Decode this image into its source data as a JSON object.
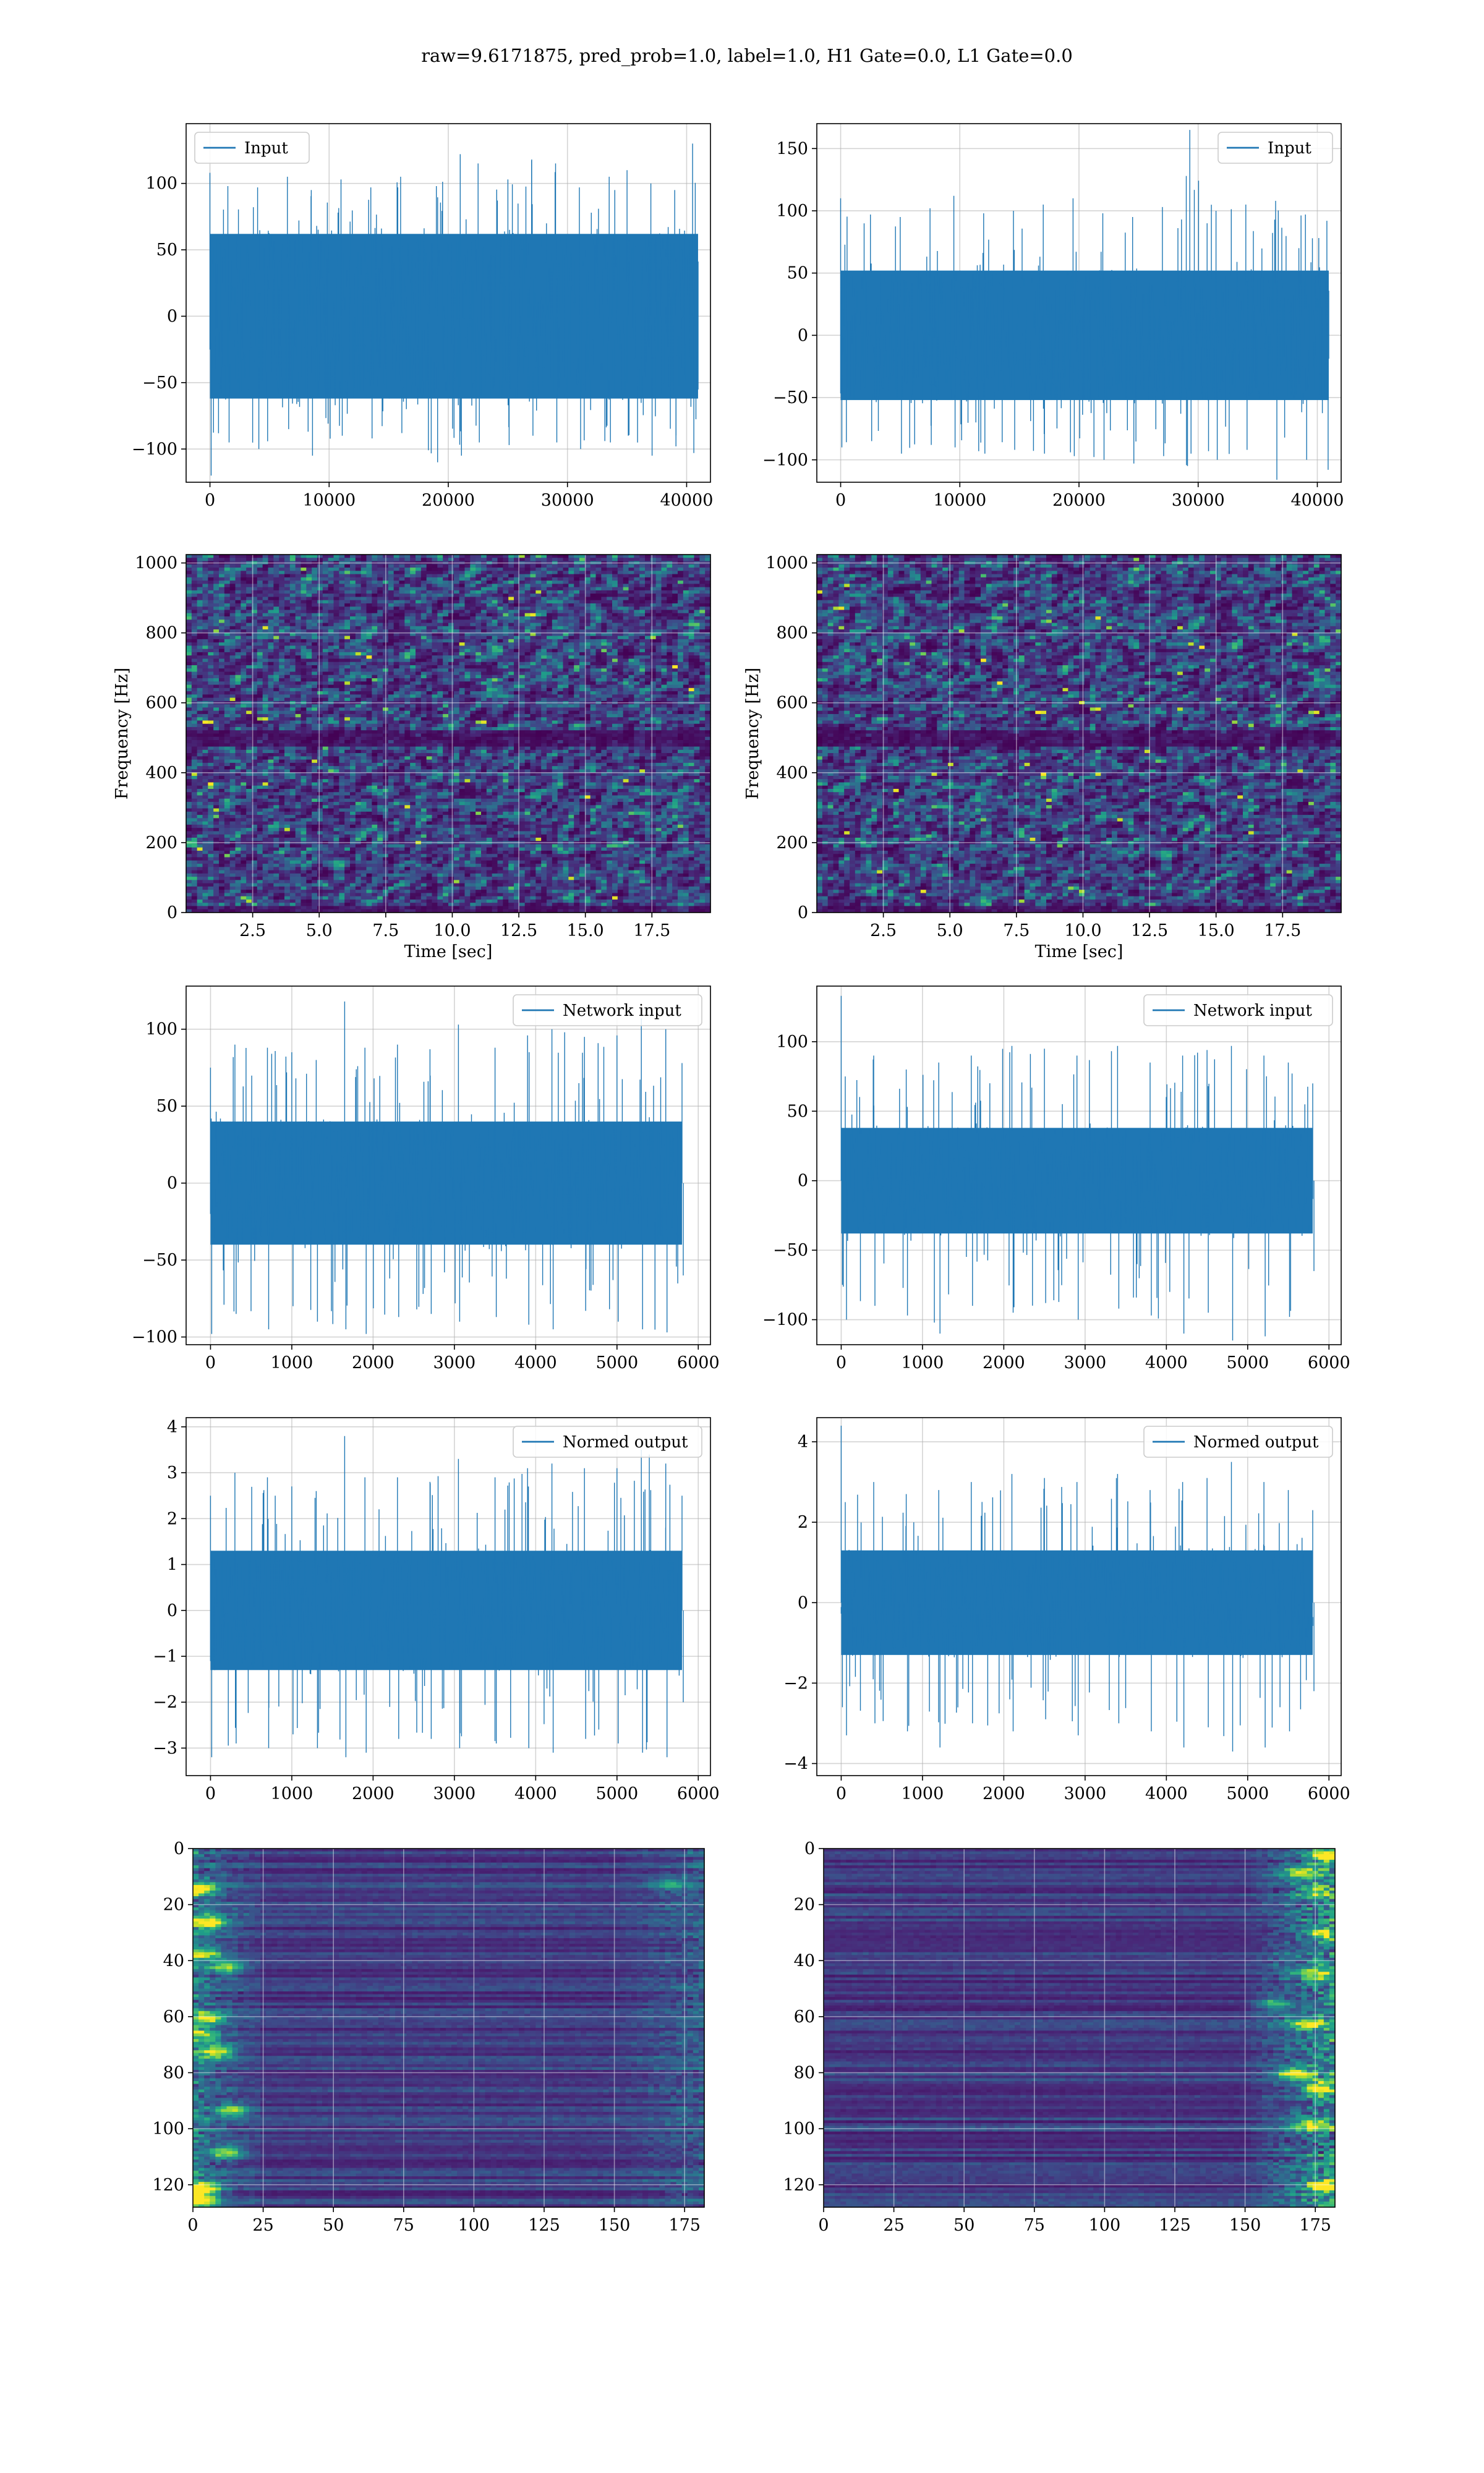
{
  "figure": {
    "title": "raw=9.6171875, pred_prob=1.0, label=1.0, H1 Gate=0.0, L1 Gate=0.0"
  },
  "colors": {
    "line": "#1f77b4",
    "grid": "#b0b0b0",
    "viridis": [
      "#440154",
      "#482878",
      "#3e4a89",
      "#31688e",
      "#26828e",
      "#1f9e89",
      "#35b779",
      "#6ece58",
      "#b5de2b",
      "#fde725"
    ]
  },
  "chart_data": [
    {
      "id": "input-h1",
      "type": "line",
      "title": "",
      "xlabel": "",
      "ylabel": "",
      "xlim": [
        -2000,
        42000
      ],
      "ylim": [
        -125,
        145
      ],
      "xticks": [
        0,
        10000,
        20000,
        30000,
        40000
      ],
      "yticks": [
        -100,
        -50,
        0,
        50,
        100
      ],
      "legend": "top-left",
      "grid": true,
      "series": [
        {
          "name": "Input",
          "x_range": [
            0,
            40960
          ],
          "band": [
            -62,
            62
          ],
          "samples": [
            [
              0,
              108,
              -120
            ],
            [
              1500,
              98,
              -95
            ],
            [
              4000,
              97,
              -100
            ],
            [
              6500,
              105,
              -85
            ],
            [
              8500,
              95,
              -105
            ],
            [
              11000,
              103,
              -90
            ],
            [
              13500,
              97,
              -92
            ],
            [
              16000,
              105,
              -88
            ],
            [
              19000,
              98,
              -110
            ],
            [
              21000,
              122,
              -105
            ],
            [
              22500,
              115,
              -95
            ],
            [
              25000,
              103,
              -97
            ],
            [
              27000,
              118,
              -90
            ],
            [
              29000,
              115,
              -95
            ],
            [
              31000,
              97,
              -100
            ],
            [
              33500,
              105,
              -95
            ],
            [
              35000,
              110,
              -90
            ],
            [
              37000,
              100,
              -105
            ],
            [
              39000,
              95,
              -98
            ],
            [
              40500,
              130,
              -103
            ]
          ]
        }
      ]
    },
    {
      "id": "input-l1",
      "type": "line",
      "title": "",
      "xlabel": "",
      "ylabel": "",
      "xlim": [
        -2000,
        42000
      ],
      "ylim": [
        -118,
        170
      ],
      "xticks": [
        0,
        10000,
        20000,
        30000,
        40000
      ],
      "yticks": [
        -100,
        -50,
        0,
        50,
        100,
        150
      ],
      "legend": "top-right",
      "grid": true,
      "series": [
        {
          "name": "Input",
          "x_range": [
            0,
            40960
          ],
          "band": [
            -52,
            52
          ],
          "samples": [
            [
              0,
              110,
              -90
            ],
            [
              2500,
              97,
              -85
            ],
            [
              5000,
              95,
              -95
            ],
            [
              7500,
              102,
              -88
            ],
            [
              9500,
              112,
              -90
            ],
            [
              12000,
              98,
              -95
            ],
            [
              14500,
              100,
              -92
            ],
            [
              17000,
              105,
              -95
            ],
            [
              19500,
              110,
              -97
            ],
            [
              22000,
              98,
              -100
            ],
            [
              24500,
              95,
              -103
            ],
            [
              27000,
              103,
              -97
            ],
            [
              29000,
              128,
              -105
            ],
            [
              29300,
              165,
              -95
            ],
            [
              31500,
              100,
              -100
            ],
            [
              34000,
              105,
              -92
            ],
            [
              36500,
              108,
              -116
            ],
            [
              39000,
              97,
              -100
            ],
            [
              40800,
              92,
              -108
            ]
          ]
        }
      ]
    },
    {
      "id": "spec-h1",
      "type": "heatmap",
      "title": "",
      "xlabel": "Time [sec]",
      "ylabel": "Frequency [Hz]",
      "xlim": [
        0,
        19.7
      ],
      "ylim": [
        0,
        1024
      ],
      "xticks": [
        2.5,
        5.0,
        7.5,
        10.0,
        12.5,
        15.0,
        17.5
      ],
      "yticks": [
        0,
        200,
        400,
        600,
        800,
        1000
      ],
      "tick_labels_x": [
        "2.5",
        "5.0",
        "7.5",
        "10.0",
        "12.5",
        "15.0",
        "17.5"
      ],
      "grid": true,
      "colormap": "viridis",
      "notes_band_hz": [
        475,
        525
      ]
    },
    {
      "id": "spec-l1",
      "type": "heatmap",
      "title": "",
      "xlabel": "Time [sec]",
      "ylabel": "Frequency [Hz]",
      "xlim": [
        0,
        19.7
      ],
      "ylim": [
        0,
        1024
      ],
      "xticks": [
        2.5,
        5.0,
        7.5,
        10.0,
        12.5,
        15.0,
        17.5
      ],
      "yticks": [
        0,
        200,
        400,
        600,
        800,
        1000
      ],
      "tick_labels_x": [
        "2.5",
        "5.0",
        "7.5",
        "10.0",
        "12.5",
        "15.0",
        "17.5"
      ],
      "grid": true,
      "colormap": "viridis",
      "notes_band_hz": [
        475,
        525
      ]
    },
    {
      "id": "net-h1",
      "type": "line",
      "title": "",
      "xlabel": "",
      "ylabel": "",
      "xlim": [
        -300,
        6150
      ],
      "ylim": [
        -105,
        128
      ],
      "xticks": [
        0,
        1000,
        2000,
        3000,
        4000,
        5000,
        6000
      ],
      "yticks": [
        -100,
        -50,
        0,
        50,
        100
      ],
      "legend": "top-right",
      "grid": true,
      "series": [
        {
          "name": "Network input",
          "x_range": [
            0,
            5800
          ],
          "band": [
            -40,
            40
          ],
          "samples": [
            [
              0,
              75,
              -98
            ],
            [
              300,
              90,
              -85
            ],
            [
              700,
              88,
              -95
            ],
            [
              1000,
              85,
              -80
            ],
            [
              1300,
              80,
              -90
            ],
            [
              1650,
              118,
              -95
            ],
            [
              1900,
              88,
              -98
            ],
            [
              2300,
              90,
              -87
            ],
            [
              2700,
              87,
              -85
            ],
            [
              3050,
              103,
              -90
            ],
            [
              3500,
              88,
              -87
            ],
            [
              3900,
              96,
              -92
            ],
            [
              4200,
              100,
              -95
            ],
            [
              4600,
              95,
              -83
            ],
            [
              5000,
              96,
              -90
            ],
            [
              5300,
              107,
              -95
            ],
            [
              5600,
              100,
              -97
            ],
            [
              5800,
              78,
              -60
            ]
          ]
        }
      ]
    },
    {
      "id": "net-l1",
      "type": "line",
      "title": "",
      "xlabel": "",
      "ylabel": "",
      "xlim": [
        -300,
        6150
      ],
      "ylim": [
        -118,
        140
      ],
      "xticks": [
        0,
        1000,
        2000,
        3000,
        4000,
        5000,
        6000
      ],
      "yticks": [
        -100,
        -50,
        0,
        50,
        100
      ],
      "legend": "top-right",
      "grid": true,
      "series": [
        {
          "name": "Network input",
          "x_range": [
            0,
            5800
          ],
          "band": [
            -38,
            38
          ],
          "samples": [
            [
              0,
              133,
              -75
            ],
            [
              50,
              75,
              -100
            ],
            [
              400,
              90,
              -90
            ],
            [
              800,
              80,
              -97
            ],
            [
              1200,
              85,
              -110
            ],
            [
              1600,
              90,
              -90
            ],
            [
              2100,
              97,
              -95
            ],
            [
              2500,
              95,
              -88
            ],
            [
              2900,
              90,
              -100
            ],
            [
              3400,
              97,
              -92
            ],
            [
              3800,
              85,
              -97
            ],
            [
              4200,
              90,
              -110
            ],
            [
              4500,
              94,
              -95
            ],
            [
              4800,
              97,
              -115
            ],
            [
              5200,
              90,
              -112
            ],
            [
              5500,
              85,
              -98
            ],
            [
              5800,
              70,
              -65
            ]
          ]
        }
      ]
    },
    {
      "id": "norm-h1",
      "type": "line",
      "title": "",
      "xlabel": "",
      "ylabel": "",
      "xlim": [
        -300,
        6150
      ],
      "ylim": [
        -3.6,
        4.2
      ],
      "xticks": [
        0,
        1000,
        2000,
        3000,
        4000,
        5000,
        6000
      ],
      "yticks": [
        -3,
        -2,
        -1,
        0,
        1,
        2,
        3,
        4
      ],
      "legend": "top-right",
      "grid": true,
      "series": [
        {
          "name": "Normed output",
          "x_range": [
            0,
            5800
          ],
          "band": [
            -1.3,
            1.3
          ],
          "samples": [
            [
              0,
              2.5,
              -3.2
            ],
            [
              300,
              3.0,
              -2.9
            ],
            [
              700,
              2.9,
              -3.0
            ],
            [
              1000,
              2.7,
              -2.7
            ],
            [
              1300,
              2.6,
              -3.0
            ],
            [
              1650,
              3.8,
              -3.2
            ],
            [
              1900,
              2.9,
              -3.1
            ],
            [
              2300,
              2.9,
              -2.8
            ],
            [
              2700,
              2.8,
              -2.8
            ],
            [
              3050,
              3.3,
              -3.0
            ],
            [
              3500,
              2.9,
              -2.9
            ],
            [
              3900,
              3.1,
              -3.0
            ],
            [
              4200,
              3.2,
              -3.1
            ],
            [
              4600,
              3.1,
              -2.8
            ],
            [
              5000,
              3.1,
              -2.9
            ],
            [
              5300,
              3.5,
              -3.1
            ],
            [
              5600,
              3.2,
              -3.2
            ],
            [
              5800,
              2.5,
              -2.0
            ]
          ]
        }
      ]
    },
    {
      "id": "norm-l1",
      "type": "line",
      "title": "",
      "xlabel": "",
      "ylabel": "",
      "xlim": [
        -300,
        6150
      ],
      "ylim": [
        -4.3,
        4.6
      ],
      "xticks": [
        0,
        1000,
        2000,
        3000,
        4000,
        5000,
        6000
      ],
      "yticks": [
        -4,
        -2,
        0,
        2,
        4
      ],
      "legend": "top-right",
      "grid": true,
      "series": [
        {
          "name": "Normed output",
          "x_range": [
            0,
            5800
          ],
          "band": [
            -1.3,
            1.3
          ],
          "samples": [
            [
              0,
              4.4,
              -2.6
            ],
            [
              50,
              2.5,
              -3.3
            ],
            [
              400,
              3.0,
              -3.0
            ],
            [
              800,
              2.7,
              -3.2
            ],
            [
              1200,
              2.8,
              -3.6
            ],
            [
              1600,
              3.0,
              -3.0
            ],
            [
              2100,
              3.2,
              -3.2
            ],
            [
              2500,
              3.1,
              -2.9
            ],
            [
              2900,
              3.0,
              -3.3
            ],
            [
              3400,
              3.2,
              -3.0
            ],
            [
              3800,
              2.8,
              -3.2
            ],
            [
              4200,
              3.0,
              -3.6
            ],
            [
              4500,
              3.1,
              -3.1
            ],
            [
              4800,
              3.5,
              -3.7
            ],
            [
              5200,
              3.0,
              -3.6
            ],
            [
              5500,
              2.8,
              -3.2
            ],
            [
              5800,
              2.3,
              -2.2
            ]
          ]
        }
      ]
    },
    {
      "id": "feat-h1",
      "type": "heatmap",
      "title": "",
      "xlabel": "",
      "ylabel": "",
      "xlim": [
        0,
        182
      ],
      "ylim": [
        128,
        0
      ],
      "xticks": [
        0,
        25,
        50,
        75,
        100,
        125,
        150,
        175
      ],
      "yticks": [
        0,
        20,
        40,
        60,
        80,
        100,
        120
      ],
      "grid": true,
      "colormap": "viridis",
      "hotspots": [
        [
          2,
          14,
          0.8
        ],
        [
          5,
          26,
          0.9
        ],
        [
          4,
          37,
          0.6
        ],
        [
          12,
          42,
          0.6
        ],
        [
          5,
          60,
          0.7
        ],
        [
          3,
          66,
          0.55
        ],
        [
          8,
          72,
          0.8
        ],
        [
          14,
          93,
          0.6
        ],
        [
          12,
          108,
          0.65
        ],
        [
          3,
          121,
          0.9
        ],
        [
          2,
          125,
          0.95
        ],
        [
          170,
          12,
          0.3
        ]
      ]
    },
    {
      "id": "feat-l1",
      "type": "heatmap",
      "title": "",
      "xlabel": "",
      "ylabel": "",
      "xlim": [
        0,
        182
      ],
      "ylim": [
        128,
        0
      ],
      "xticks": [
        0,
        25,
        50,
        75,
        100,
        125,
        150,
        175
      ],
      "yticks": [
        0,
        20,
        40,
        60,
        80,
        100,
        120
      ],
      "grid": true,
      "colormap": "viridis",
      "hotspots": [
        [
          180,
          2,
          0.8
        ],
        [
          170,
          8,
          0.6
        ],
        [
          176,
          15,
          0.5
        ],
        [
          178,
          30,
          0.6
        ],
        [
          175,
          44,
          0.55
        ],
        [
          172,
          62,
          0.6
        ],
        [
          168,
          80,
          0.7
        ],
        [
          177,
          85,
          0.75
        ],
        [
          174,
          98,
          0.6
        ],
        [
          178,
          120,
          0.8
        ],
        [
          160,
          55,
          0.4
        ]
      ]
    }
  ]
}
